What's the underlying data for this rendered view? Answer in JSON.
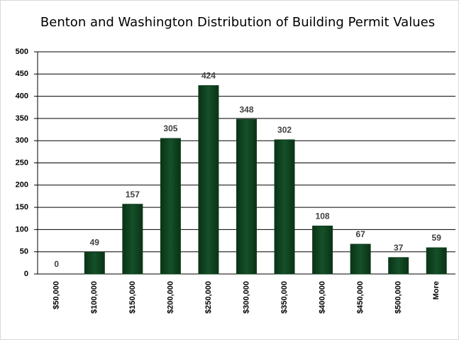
{
  "chart_data": {
    "type": "bar",
    "title": "Benton and Washington Distribution of Building Permit Values",
    "categories": [
      "$50,000",
      "$100,000",
      "$150,000",
      "$200,000",
      "$250,000",
      "$300,000",
      "$350,000",
      "$400,000",
      "$450,000",
      "$500,000",
      "More"
    ],
    "values": [
      0,
      49,
      157,
      305,
      424,
      348,
      302,
      108,
      67,
      37,
      59
    ],
    "color": "#0d3d1b",
    "ylim": [
      0,
      500
    ],
    "yticks": [
      0,
      50,
      100,
      150,
      200,
      250,
      300,
      350,
      400,
      450,
      500
    ],
    "grid": true
  }
}
